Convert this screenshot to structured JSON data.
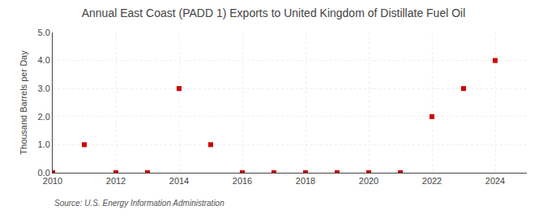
{
  "chart_data": {
    "type": "scatter",
    "title": "Annual East Coast (PADD 1) Exports to United Kingdom of Distillate Fuel Oil",
    "ylabel": "Thousand Barrels per Day",
    "annotations": [
      "Source: U.S. Energy Information Administration"
    ],
    "x": [
      2010,
      2011,
      2012,
      2013,
      2014,
      2015,
      2016,
      2017,
      2018,
      2019,
      2020,
      2021,
      2022,
      2023,
      2024
    ],
    "values": [
      0.0,
      1.0,
      0.0,
      0.0,
      3.0,
      1.0,
      0.0,
      0.0,
      0.0,
      0.0,
      0.0,
      0.0,
      2.0,
      3.0,
      4.0
    ],
    "color": "#cc0000",
    "marker": "square",
    "xlim": [
      2010,
      2025
    ],
    "xticks": [
      2010,
      2012,
      2014,
      2016,
      2018,
      2020,
      2022,
      2024
    ],
    "ylim": [
      0.0,
      5.0
    ],
    "yticks": [
      {
        "value": 0.0,
        "label": "0.0"
      },
      {
        "value": 1.0,
        "label": "1.0"
      },
      {
        "value": 2.0,
        "label": "2.0"
      },
      {
        "value": 3.0,
        "label": "3.0"
      },
      {
        "value": 4.0,
        "label": "4.0"
      },
      {
        "value": 5.0,
        "label": "5.0"
      }
    ],
    "grid": true
  }
}
